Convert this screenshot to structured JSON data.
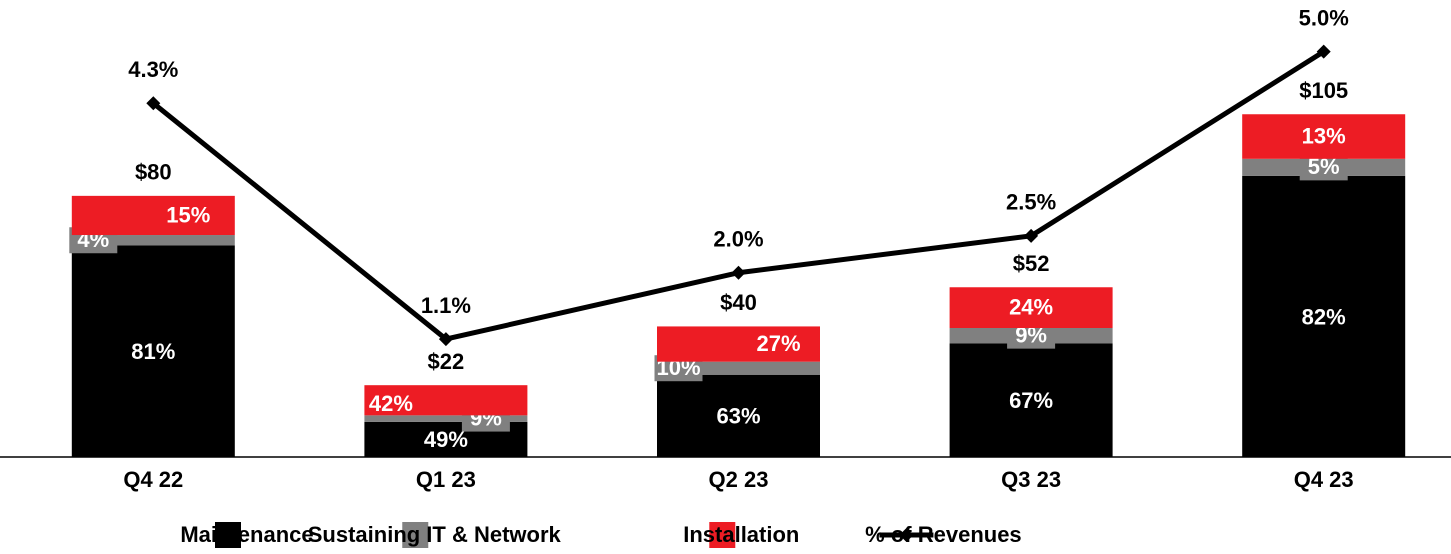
{
  "chart_data": {
    "type": "bar",
    "categories": [
      "Q4 22",
      "Q1 23",
      "Q2 23",
      "Q3 23",
      "Q4 23"
    ],
    "totals": [
      80,
      22,
      40,
      52,
      105
    ],
    "total_labels": [
      "$80",
      "$22",
      "$40",
      "$52",
      "$105"
    ],
    "series": [
      {
        "name": "Maintenance",
        "color": "#000000",
        "values": [
          81,
          49,
          63,
          67,
          82
        ],
        "value_labels": [
          "81%",
          "49%",
          "63%",
          "67%",
          "82%"
        ]
      },
      {
        "name": "Sustaining IT & Network",
        "color": "#808080",
        "values": [
          4,
          9,
          10,
          9,
          5
        ],
        "value_labels": [
          "4%",
          "9%",
          "10%",
          "9%",
          "5%"
        ]
      },
      {
        "name": "Installation",
        "color": "#ed1c24",
        "values": [
          15,
          42,
          27,
          24,
          13
        ],
        "value_labels": [
          "15%",
          "42%",
          "27%",
          "24%",
          "13%"
        ]
      },
      {
        "name": "% of Revenues",
        "type": "line",
        "axis": "y2",
        "color": "#000000",
        "values": [
          4.3,
          1.1,
          2.0,
          2.5,
          5.0
        ],
        "value_labels": [
          "4.3%",
          "1.1%",
          "2.0%",
          "2.5%",
          "5.0%"
        ]
      }
    ],
    "ylim": [
      0,
      140
    ],
    "y2lim": [
      -0.5,
      5.7
    ]
  }
}
